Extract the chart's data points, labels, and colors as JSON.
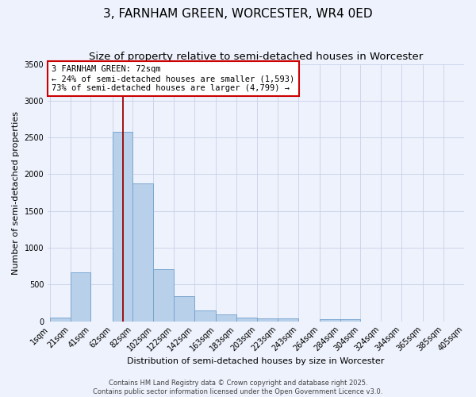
{
  "title1": "3, FARNHAM GREEN, WORCESTER, WR4 0ED",
  "title2": "Size of property relative to semi-detached houses in Worcester",
  "xlabel": "Distribution of semi-detached houses by size in Worcester",
  "ylabel": "Number of semi-detached properties",
  "bin_edges": [
    1,
    21,
    41,
    62,
    82,
    102,
    122,
    142,
    163,
    183,
    203,
    223,
    243,
    264,
    284,
    304,
    324,
    344,
    365,
    385,
    405
  ],
  "bin_labels": [
    "1sqm",
    "21sqm",
    "41sqm",
    "62sqm",
    "82sqm",
    "102sqm",
    "122sqm",
    "142sqm",
    "163sqm",
    "183sqm",
    "203sqm",
    "223sqm",
    "243sqm",
    "264sqm",
    "284sqm",
    "304sqm",
    "324sqm",
    "344sqm",
    "365sqm",
    "385sqm",
    "405sqm"
  ],
  "bar_values": [
    55,
    670,
    0,
    2580,
    1880,
    710,
    340,
    150,
    90,
    50,
    35,
    35,
    0,
    25,
    25,
    0,
    0,
    0,
    0,
    0
  ],
  "bar_color": "#b8d0ea",
  "bar_edge_color": "#6fa0cc",
  "background_color": "#eef2fc",
  "grid_color": "#c8d0e8",
  "vline_x": 72,
  "vline_color": "#990000",
  "annotation_text": "3 FARNHAM GREEN: 72sqm\n← 24% of semi-detached houses are smaller (1,593)\n73% of semi-detached houses are larger (4,799) →",
  "annotation_box_color": "#ffffff",
  "annotation_box_edge": "#cc0000",
  "ylim": [
    0,
    3500
  ],
  "yticks": [
    0,
    500,
    1000,
    1500,
    2000,
    2500,
    3000,
    3500
  ],
  "xlim_min": 1,
  "xlim_max": 405,
  "footer1": "Contains HM Land Registry data © Crown copyright and database right 2025.",
  "footer2": "Contains public sector information licensed under the Open Government Licence v3.0.",
  "title_fontsize": 11,
  "subtitle_fontsize": 9.5,
  "axis_label_fontsize": 8,
  "tick_fontsize": 7,
  "annotation_fontsize": 7.5,
  "footer_fontsize": 6
}
